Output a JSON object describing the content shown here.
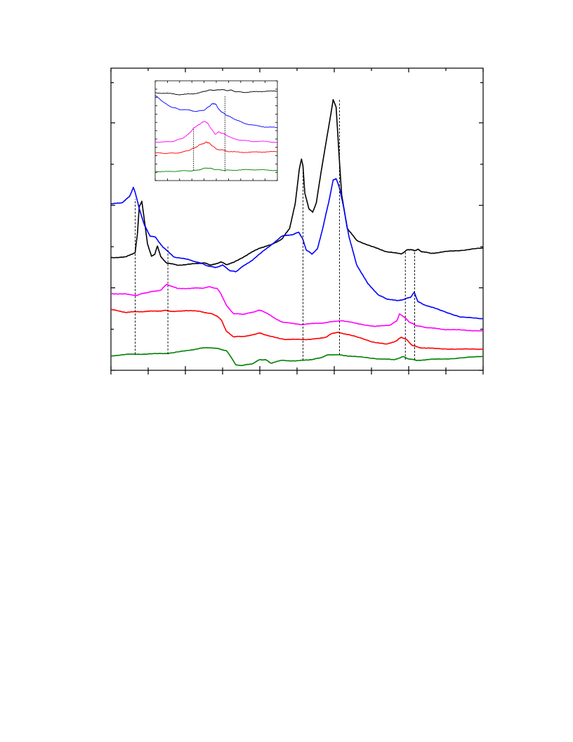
{
  "chart_data": [
    {
      "type": "line",
      "role": "main",
      "title": "",
      "xlabel": "",
      "ylabel": "",
      "xlim": [
        0,
        100
      ],
      "ylim": [
        0,
        100
      ],
      "tick_labels": [],
      "grid": false,
      "legend": "none",
      "x_major_ticks": [
        0,
        20,
        40,
        60,
        80,
        100
      ],
      "x_minor_ticks": [
        10,
        30,
        50,
        70,
        90
      ],
      "y_major_ticks": [
        0,
        27.3,
        54.6,
        81.9
      ],
      "y_minor_ticks": [
        13.6,
        40.9,
        68.2,
        95.2
      ],
      "series": [
        {
          "color": "#000000",
          "x": [
            0,
            4,
            6.5,
            7.1,
            7.6,
            8.3,
            9.8,
            10.9,
            11.8,
            12.5,
            13.4,
            15,
            18,
            22,
            25,
            26.5,
            28,
            29.5,
            31,
            33,
            37,
            40,
            43,
            46,
            48,
            49.5,
            50.6,
            51.2,
            51.6,
            52.1,
            53.2,
            54.2,
            55.2,
            56.5,
            58.5,
            59.7,
            60.5,
            61.2,
            62,
            63.5,
            66,
            70,
            74,
            78,
            79.5,
            80.5,
            81.5,
            82.5,
            83.5,
            86,
            90,
            95,
            100
          ],
          "y": [
            37.3,
            37.5,
            39,
            45,
            54,
            56,
            42,
            37.7,
            38.5,
            41.2,
            37.5,
            35.5,
            34.8,
            35.2,
            35.6,
            34.9,
            35.1,
            35.9,
            35,
            35.7,
            38.5,
            40.5,
            41.5,
            43.5,
            47,
            55,
            66.5,
            70,
            67.5,
            58.5,
            53.5,
            52.3,
            55.5,
            66,
            80.5,
            89.5,
            87.2,
            73,
            58,
            47,
            43,
            41,
            39.3,
            38.5,
            39.8,
            40,
            39.6,
            40,
            39.3,
            38.7,
            39.3,
            39.8,
            40.5
          ]
        },
        {
          "color": "#0000ff",
          "x": [
            0,
            3,
            5,
            6,
            6.5,
            7.5,
            9,
            10.5,
            12,
            14,
            17,
            21,
            24,
            26,
            28,
            30,
            32,
            33.5,
            35,
            38,
            42,
            46,
            49,
            50.5,
            51.5,
            52.5,
            54,
            55.5,
            57,
            58.5,
            59.7,
            60.5,
            61.5,
            62.5,
            64,
            66,
            69,
            72,
            74,
            77,
            79,
            80.5,
            81.5,
            82.5,
            84,
            88,
            94,
            100
          ],
          "y": [
            55,
            55.5,
            57.5,
            60.5,
            59,
            54,
            48,
            44.5,
            44,
            40.7,
            37.5,
            36.6,
            35.5,
            34.6,
            34,
            34.8,
            33,
            32.6,
            34,
            36.5,
            40.5,
            44.4,
            45,
            45.7,
            43.5,
            39.8,
            38.5,
            40.2,
            47.5,
            55.6,
            62.9,
            63.5,
            60,
            54,
            44,
            35,
            28.7,
            24.8,
            23.7,
            23,
            23.6,
            24.2,
            25.8,
            22.7,
            21.8,
            20.1,
            17.6,
            17.1
          ]
        },
        {
          "color": "#ff00ff",
          "x": [
            0,
            4,
            7,
            9,
            11,
            13.5,
            15,
            18,
            22,
            24.5,
            26.5,
            28.5,
            29.5,
            31,
            33,
            35.5,
            37.5,
            39.5,
            40.5,
            42.5,
            46,
            51,
            55,
            58,
            62,
            66,
            71,
            75,
            76.8,
            77.5,
            79,
            80,
            81,
            82,
            84,
            86,
            90,
            95,
            100
          ],
          "y": [
            25.4,
            25.2,
            24.8,
            25.6,
            26,
            26.6,
            28.5,
            27,
            27.2,
            27.2,
            27.6,
            27.1,
            25.5,
            21.5,
            18.7,
            18.6,
            19,
            19.8,
            19.8,
            18.4,
            15.9,
            15.2,
            15.5,
            15.8,
            16.5,
            15.5,
            14.5,
            15,
            16.3,
            18.6,
            17.5,
            16.1,
            15.5,
            14.8,
            14.3,
            14,
            13.5,
            13.3,
            13
          ]
        },
        {
          "color": "#ff0000",
          "x": [
            0,
            4,
            7,
            10,
            13.5,
            15,
            17,
            20,
            24,
            27,
            28.5,
            29.8,
            31,
            33,
            35,
            37.5,
            39.5,
            40.5,
            42.5,
            47,
            52,
            56,
            58,
            59.5,
            61,
            64,
            70,
            74,
            76.8,
            78,
            79.5,
            81,
            83,
            87,
            93,
            100
          ],
          "y": [
            20.1,
            19.2,
            19.4,
            19.5,
            19.7,
            19.8,
            19.4,
            19.8,
            19.5,
            18.7,
            18,
            16.4,
            12.9,
            11.1,
            11.2,
            11.5,
            12.3,
            12.2,
            11.3,
            10.2,
            10.2,
            10.5,
            11.1,
            12.3,
            12.5,
            11.8,
            9.5,
            8.6,
            9.8,
            11,
            10.1,
            8.2,
            7.5,
            7.2,
            7,
            7
          ]
        },
        {
          "color": "#008000",
          "x": [
            0,
            5,
            10,
            15,
            20,
            24,
            27,
            29,
            31,
            32.5,
            33.5,
            35.5,
            38,
            40,
            41.5,
            43,
            46,
            50,
            54,
            56,
            58,
            60,
            62,
            66,
            72,
            76,
            78.5,
            80,
            82,
            86,
            92,
            100
          ],
          "y": [
            4.8,
            5.3,
            5.4,
            5.6,
            6.4,
            7.3,
            7.5,
            7.1,
            6.5,
            4,
            1.8,
            1.6,
            2.2,
            3.5,
            3.5,
            2.4,
            3.3,
            3.1,
            3.6,
            4,
            5,
            5.2,
            5,
            4.5,
            3.8,
            3.5,
            4.5,
            3.8,
            3.3,
            3.6,
            3.9,
            4.6
          ]
        }
      ],
      "reference_lines": [
        {
          "x": 6.5,
          "y_from": 5.3,
          "y_to": 56.7
        },
        {
          "x": 15.3,
          "y_from": 5.4,
          "y_to": 41.3
        },
        {
          "x": 51.6,
          "y_from": 3.3,
          "y_to": 66.5
        },
        {
          "x": 61.4,
          "y_from": 5.1,
          "y_to": 89.6
        },
        {
          "x": 79.1,
          "y_from": 3.5,
          "y_to": 39.1
        },
        {
          "x": 81.6,
          "y_from": 3.5,
          "y_to": 39.1
        }
      ]
    },
    {
      "type": "line",
      "role": "inset",
      "title": "",
      "xlabel": "",
      "ylabel": "",
      "xlim": [
        0,
        100
      ],
      "ylim": [
        0,
        100
      ],
      "tick_labels": [],
      "grid": false,
      "legend": "none",
      "x_major_ticks": [
        0,
        10,
        20,
        30,
        40,
        50,
        60,
        70,
        80,
        90,
        100
      ],
      "y_major_ticks": [
        0,
        8.3,
        16.6,
        25,
        33.3,
        41.6,
        50,
        58.3,
        66.6,
        75,
        83.3,
        91.6,
        100
      ],
      "series": [
        {
          "color": "#000000",
          "x": [
            0,
            10,
            20,
            30,
            38,
            42,
            46,
            50,
            54,
            58,
            62,
            66,
            72,
            80,
            90,
            100
          ],
          "y": [
            88,
            87.4,
            86.2,
            86.8,
            88.5,
            90.1,
            90.8,
            90.5,
            91.4,
            90.3,
            90.6,
            89.2,
            88.4,
            88.9,
            89.6,
            89.6
          ]
        },
        {
          "color": "#0000ff",
          "x": [
            0,
            5,
            10,
            15,
            20,
            28,
            34,
            40,
            44,
            46,
            48,
            50,
            52,
            54,
            57,
            60,
            65,
            72,
            80,
            90,
            100
          ],
          "y": [
            85.3,
            80.5,
            75.6,
            73.1,
            71.4,
            70.6,
            69.2,
            70.7,
            74,
            76.4,
            77.3,
            76,
            71.4,
            69.3,
            66.6,
            64.5,
            61.7,
            57.7,
            55.5,
            53.8,
            53.1
          ]
        },
        {
          "color": "#ff00ff",
          "x": [
            0,
            8,
            15,
            22,
            27,
            30,
            32,
            35,
            38,
            41,
            43,
            46,
            49,
            52,
            55,
            58,
            62,
            70,
            80,
            90,
            100
          ],
          "y": [
            38.8,
            38.6,
            39.4,
            42.2,
            46.2,
            50.3,
            53.3,
            55.3,
            58.1,
            59.4,
            57.1,
            51.8,
            46.5,
            48.6,
            47.4,
            45.9,
            42.9,
            40.4,
            39.3,
            39.2,
            38.4
          ]
        },
        {
          "color": "#ff0000",
          "x": [
            0,
            8,
            15,
            22,
            28,
            32,
            36,
            40,
            42,
            44,
            46,
            50,
            55,
            60,
            70,
            80,
            90,
            100
          ],
          "y": [
            27.8,
            27.4,
            27.4,
            28.3,
            30.7,
            32.6,
            35.5,
            37.5,
            38.6,
            37.7,
            35.7,
            31.6,
            30.6,
            29.2,
            28.3,
            28.5,
            28.8,
            29
          ]
        },
        {
          "color": "#008000",
          "x": [
            0,
            10,
            20,
            28,
            34,
            38,
            42,
            46,
            50,
            55,
            60,
            70,
            80,
            90,
            100
          ],
          "y": [
            9.2,
            8.9,
            9.7,
            9.8,
            10.2,
            11.5,
            12.8,
            12,
            11,
            10.5,
            10.3,
            10.7,
            11,
            10.6,
            10.2
          ]
        }
      ],
      "reference_lines": [
        {
          "x": 31.4,
          "y_from": 10.3,
          "y_to": 52.6
        },
        {
          "x": 57.1,
          "y_from": 9.3,
          "y_to": 84.5
        }
      ]
    }
  ]
}
